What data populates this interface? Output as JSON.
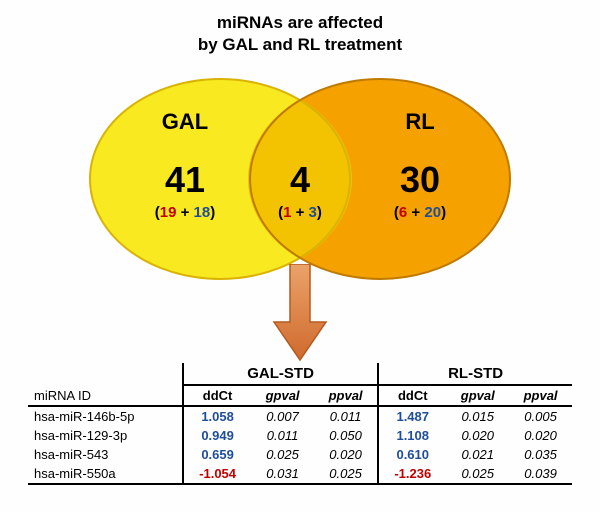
{
  "title_line1": "miRNAs are affected",
  "title_line2": "by GAL and RL treatment",
  "venn": {
    "left": {
      "name": "GAL",
      "count": "41",
      "red": "19",
      "blue": "18",
      "fill": "#f8e921",
      "stroke": "#d9b300"
    },
    "right": {
      "name": "RL",
      "count": "30",
      "red": "6",
      "blue": "20",
      "fill": "#f5a100",
      "stroke": "#bf7a00"
    },
    "overlap": {
      "fill": "#f3c200",
      "count": "4",
      "red": "1",
      "blue": "3"
    },
    "arrow_color": "#d77c3e",
    "arrow_border": "#b35a1f"
  },
  "table": {
    "group1": "GAL-STD",
    "group2": "RL-STD",
    "col_id": "miRNA ID",
    "col_ddct": "ddCt",
    "col_gpval": "gpval",
    "col_ppval": "ppval",
    "rows": [
      {
        "id": "hsa-miR-146b-5p",
        "d1": "1.058",
        "c1": "blue",
        "g1": "0.007",
        "p1": "0.011",
        "d2": "1.487",
        "c2": "blue",
        "g2": "0.015",
        "p2": "0.005"
      },
      {
        "id": "hsa-miR-129-3p",
        "d1": "0.949",
        "c1": "blue",
        "g1": "0.011",
        "p1": "0.050",
        "d2": "1.108",
        "c2": "blue",
        "g2": "0.020",
        "p2": "0.020"
      },
      {
        "id": "hsa-miR-543",
        "d1": "0.659",
        "c1": "blue",
        "g1": "0.025",
        "p1": "0.020",
        "d2": "0.610",
        "c2": "blue",
        "g2": "0.021",
        "p2": "0.035"
      },
      {
        "id": "hsa-miR-550a",
        "d1": "-1.054",
        "c1": "red",
        "g1": "0.031",
        "p1": "0.025",
        "d2": "-1.236",
        "c2": "red",
        "g2": "0.025",
        "p2": "0.039"
      }
    ]
  }
}
